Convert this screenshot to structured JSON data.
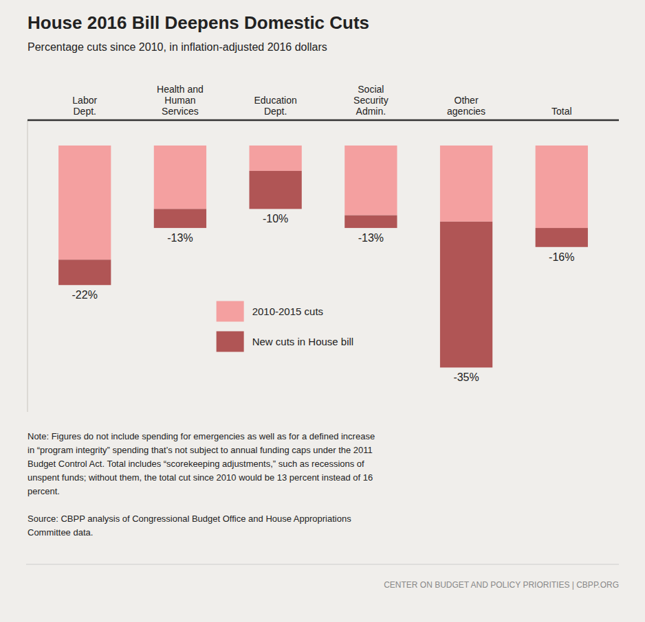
{
  "chart_data": {
    "type": "bar",
    "title": "House 2016 Bill Deepens Domestic Cuts",
    "subtitle": "Percentage cuts since 2010, in inflation-adjusted 2016 dollars",
    "categories": [
      "Labor\nDept.",
      "Health and\nHuman\nServices",
      "Education\nDept.",
      "Social\nSecurity\nAdmin.",
      "Other\nagencies",
      "Total"
    ],
    "series": [
      {
        "name": "2010-2015 cuts",
        "color": "#f4a0a0",
        "values": [
          -18,
          -10,
          -4,
          -11,
          -12,
          -13
        ]
      },
      {
        "name": "New cuts in House bill",
        "color": "#b05555",
        "values": [
          -4,
          -3,
          -6,
          -2,
          -23,
          -3
        ]
      }
    ],
    "stacked": true,
    "totals": [
      -22,
      -13,
      -10,
      -13,
      -35,
      -16
    ],
    "total_labels": [
      "-22%",
      "-13%",
      "-10%",
      "-13%",
      "-35%",
      "-16%"
    ],
    "ylim": [
      -42,
      4
    ],
    "tick_labels": "x",
    "grid": false,
    "legend": "center",
    "note": "Note: Figures do not include spending for emergencies as well as for a defined increase\nin “program integrity” spending that’s not subject to annual funding caps under the 2011\nBudget Control Act.  Total includes “scorekeeping adjustments,” such as recessions of\nunspent funds; without them, the total cut since 2010 would be 13 percent instead of 16\npercent.",
    "source": "Source: CBPP analysis of Congressional Budget Office and House Appropriations\nCommittee data.",
    "footer": "CENTER ON BUDGET AND POLICY PRIORITIES | CBPP.ORG"
  }
}
